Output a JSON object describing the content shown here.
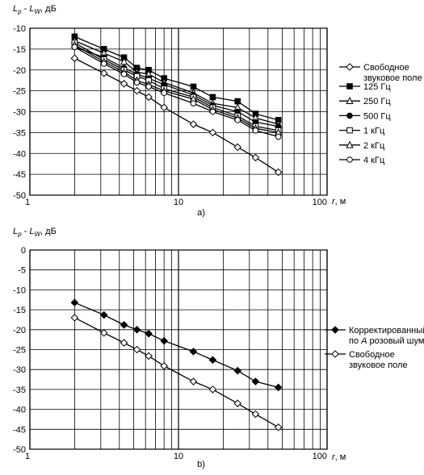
{
  "chart_data": [
    {
      "type": "line",
      "panel_label": "a)",
      "ylabel": {
        "L": "L",
        "p": "p",
        "dash": " - ",
        "W": "W",
        "unit": ", дБ"
      },
      "xlabel": {
        "r": "r",
        "unit": ", м"
      },
      "x_scale": "log",
      "xlim": [
        1,
        100
      ],
      "ylim": [
        -50,
        -10
      ],
      "y_ticks": [
        -10,
        -15,
        -20,
        -25,
        -30,
        -35,
        -40,
        -45,
        -50
      ],
      "x_tick_labels": [
        "1",
        "10",
        "100"
      ],
      "grid": true,
      "legend_placement": "right",
      "series": [
        {
          "name": "Свободное звуковое поле",
          "name_lines": [
            "Свободное",
            "звуковое поле"
          ],
          "marker": "diamond-open",
          "x": [
            2,
            3.15,
            4.3,
            5.25,
            6.3,
            8,
            12.6,
            17,
            25,
            33,
            47
          ],
          "y": [
            -17.2,
            -20.8,
            -23.3,
            -25.0,
            -26.5,
            -29.0,
            -33.0,
            -35.0,
            -38.5,
            -41.0,
            -44.5
          ]
        },
        {
          "name": "125 Гц",
          "marker": "square-filled",
          "x": [
            2,
            3.15,
            4.3,
            5.25,
            6.3,
            8,
            12.6,
            17,
            25,
            33,
            47
          ],
          "y": [
            -12.0,
            -15.0,
            -17.0,
            -19.5,
            -20.0,
            -22.0,
            -24.0,
            -26.5,
            -27.5,
            -30.5,
            -32.0
          ]
        },
        {
          "name": "250 Гц",
          "marker": "triangle-open",
          "x": [
            2,
            3.15,
            4.3,
            5.25,
            6.3,
            8,
            12.6,
            17,
            25,
            33,
            47
          ],
          "y": [
            -13.0,
            -16.0,
            -18.0,
            -20.5,
            -21.0,
            -23.0,
            -25.5,
            -28.0,
            -29.0,
            -31.5,
            -33.0
          ]
        },
        {
          "name": "500 Гц",
          "marker": "circle-filled",
          "x": [
            2,
            3.15,
            4.3,
            5.25,
            6.3,
            8,
            12.6,
            17,
            25,
            33,
            47
          ],
          "y": [
            -14.5,
            -17.0,
            -19.5,
            -21.0,
            -22.0,
            -23.5,
            -26.0,
            -28.5,
            -30.0,
            -32.5,
            -33.5
          ]
        },
        {
          "name": "1 кГц",
          "marker": "square-open",
          "x": [
            2,
            3.15,
            4.3,
            5.25,
            6.3,
            8,
            12.6,
            17,
            25,
            33,
            47
          ],
          "y": [
            -13.5,
            -17.5,
            -20.0,
            -21.5,
            -22.5,
            -24.5,
            -26.5,
            -29.0,
            -31.0,
            -33.5,
            -34.5
          ]
        },
        {
          "name": "2 кГц",
          "marker": "triangle-open",
          "x": [
            2,
            3.15,
            4.3,
            5.25,
            6.3,
            8,
            12.6,
            17,
            25,
            33,
            47
          ],
          "y": [
            -14.0,
            -18.0,
            -20.5,
            -22.5,
            -23.5,
            -25.0,
            -27.0,
            -29.5,
            -31.5,
            -34.0,
            -35.0
          ]
        },
        {
          "name": "4 кГц",
          "marker": "circle-open",
          "x": [
            2,
            3.15,
            4.3,
            5.25,
            6.3,
            8,
            12.6,
            17,
            25,
            33,
            47
          ],
          "y": [
            -14.5,
            -18.5,
            -21.0,
            -23.0,
            -24.0,
            -25.5,
            -28.0,
            -30.0,
            -32.0,
            -34.5,
            -36.0
          ]
        }
      ]
    },
    {
      "type": "line",
      "panel_label": "b)",
      "ylabel": {
        "L": "L",
        "p": "p",
        "dash": " - ",
        "W": "W",
        "unit": ", дБ"
      },
      "xlabel": {
        "r": "r",
        "unit": ", м"
      },
      "x_scale": "log",
      "xlim": [
        1,
        100
      ],
      "ylim": [
        -50,
        0
      ],
      "y_ticks": [
        0,
        -5,
        -10,
        -15,
        -20,
        -25,
        -30,
        -35,
        -40,
        -45,
        -50
      ],
      "x_tick_labels": [
        "1",
        "10",
        "100"
      ],
      "grid": true,
      "legend_placement": "right",
      "series": [
        {
          "name": "Корректированный по A розовый шум",
          "name_lines": [
            "Корректированный",
            "по ",
            "A",
            " розовый шум"
          ],
          "marker": "diamond-filled",
          "x": [
            2,
            3.15,
            4.3,
            5.25,
            6.3,
            8,
            12.6,
            17,
            25,
            33,
            47
          ],
          "y": [
            -13.2,
            -16.3,
            -18.8,
            -20.0,
            -21.0,
            -22.8,
            -25.5,
            -27.6,
            -30.3,
            -33.0,
            -34.5
          ]
        },
        {
          "name": "Свободное звуковое поле",
          "name_lines": [
            "Свободное",
            "звуковое поле"
          ],
          "marker": "diamond-open",
          "x": [
            2,
            3.15,
            4.3,
            5.25,
            6.3,
            8,
            12.6,
            17,
            25,
            33,
            47
          ],
          "y": [
            -17.0,
            -20.8,
            -23.3,
            -25.0,
            -26.6,
            -29.1,
            -33.0,
            -35.0,
            -38.5,
            -41.2,
            -44.5
          ]
        }
      ]
    }
  ]
}
